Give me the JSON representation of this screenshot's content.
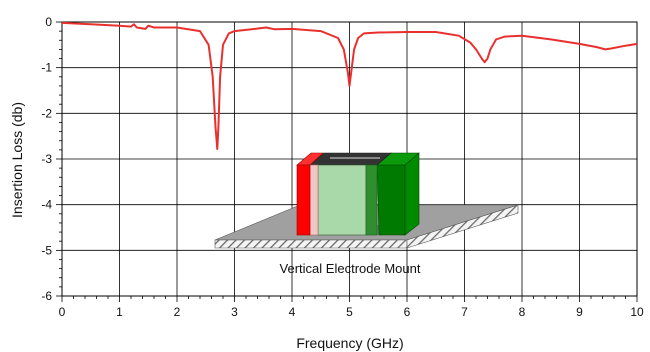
{
  "chart_data": {
    "type": "line",
    "title": "",
    "xlabel": "Frequency (GHz)",
    "ylabel": "Insertion Loss (db)",
    "xlim": [
      0,
      10
    ],
    "ylim": [
      -6,
      0
    ],
    "x_ticks": [
      "0",
      "1",
      "2",
      "3",
      "4",
      "5",
      "6",
      "7",
      "8",
      "9",
      "10"
    ],
    "y_ticks": [
      "0",
      "-1",
      "-2",
      "-3",
      "-4",
      "-5",
      "-6"
    ],
    "grid": true,
    "line_color": "#e8312f",
    "series": [
      {
        "x": [
          0,
          0.5,
          1.0,
          1.2,
          1.25,
          1.3,
          1.45,
          1.5,
          1.6,
          2.0,
          2.4,
          2.55,
          2.62,
          2.67,
          2.7,
          2.72,
          2.75,
          2.8,
          2.9,
          3.0,
          3.3,
          3.55,
          3.7,
          4.0,
          4.5,
          4.8,
          4.9,
          4.97,
          5.0,
          5.03,
          5.08,
          5.15,
          5.25,
          5.5,
          6.0,
          6.5,
          6.9,
          7.1,
          7.2,
          7.3,
          7.35,
          7.4,
          7.45,
          7.55,
          7.7,
          8.0,
          8.5,
          9.0,
          9.3,
          9.45,
          9.55,
          9.8,
          10.0
        ],
        "y": [
          -0.02,
          -0.05,
          -0.08,
          -0.1,
          -0.05,
          -0.12,
          -0.15,
          -0.08,
          -0.12,
          -0.12,
          -0.2,
          -0.5,
          -1.2,
          -2.3,
          -2.78,
          -2.3,
          -1.2,
          -0.5,
          -0.25,
          -0.2,
          -0.16,
          -0.12,
          -0.16,
          -0.15,
          -0.2,
          -0.35,
          -0.6,
          -1.1,
          -1.4,
          -1.1,
          -0.6,
          -0.35,
          -0.25,
          -0.23,
          -0.22,
          -0.22,
          -0.3,
          -0.45,
          -0.6,
          -0.8,
          -0.88,
          -0.8,
          -0.6,
          -0.38,
          -0.32,
          -0.3,
          -0.38,
          -0.48,
          -0.55,
          -0.6,
          -0.58,
          -0.52,
          -0.48
        ]
      }
    ]
  },
  "inset": {
    "caption": "Vertical Electrode Mount",
    "colors": {
      "electrode_left": "#ff0000",
      "body": "#a9d8a9",
      "electrode_right": "#008000",
      "base_plate": "#999999"
    }
  }
}
